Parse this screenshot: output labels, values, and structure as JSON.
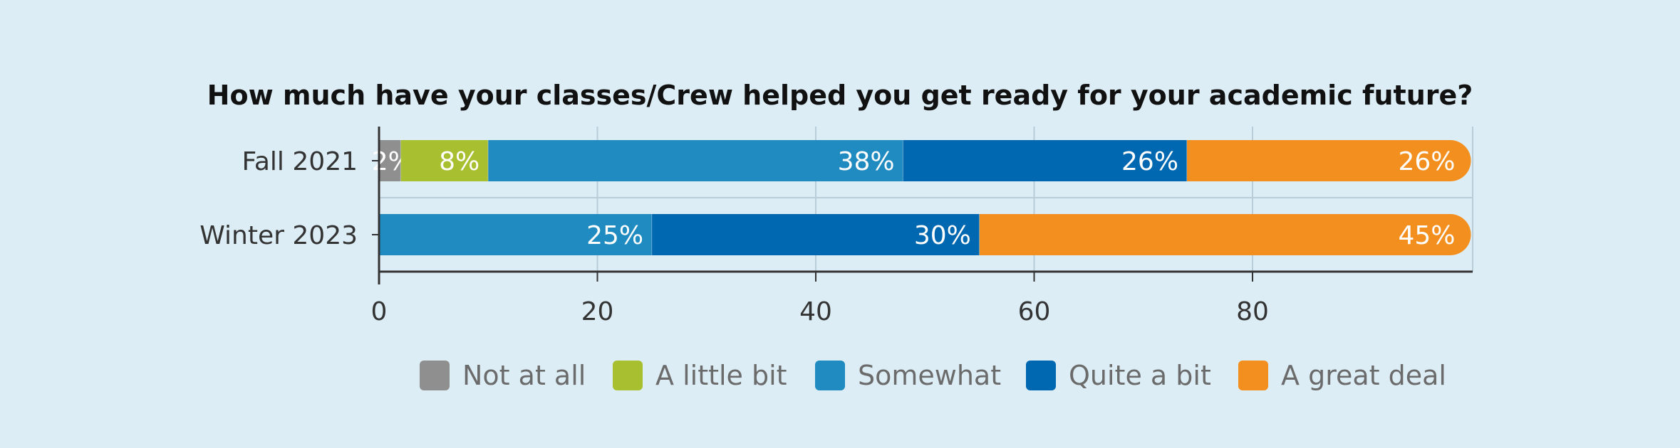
{
  "background_color": "#dcedf5",
  "chart_data": {
    "type": "bar",
    "orientation": "horizontal",
    "stacked": true,
    "title": "How much have your classes/Crew helped you get ready for your academic future?",
    "xlabel": "",
    "ylabel": "",
    "categories": [
      "Fall 2021",
      "Winter 2023"
    ],
    "xlim": [
      0,
      100
    ],
    "x_ticks": [
      0,
      20,
      40,
      60,
      80
    ],
    "grid": true,
    "legend_position": "bottom",
    "series": [
      {
        "name": "Not at all",
        "color": "#8f8f8f",
        "values": [
          2,
          0
        ],
        "labels": [
          "2%",
          ""
        ]
      },
      {
        "name": "A little bit",
        "color": "#a8bf2f",
        "values": [
          8,
          0
        ],
        "labels": [
          "8%",
          ""
        ]
      },
      {
        "name": "Somewhat",
        "color": "#1f8bc0",
        "values": [
          38,
          25
        ],
        "labels": [
          "38%",
          "25%"
        ]
      },
      {
        "name": "Quite a bit",
        "color": "#0067b1",
        "values": [
          26,
          30
        ],
        "labels": [
          "26%",
          "30%"
        ]
      },
      {
        "name": "A great deal",
        "color": "#f28f1e",
        "values": [
          26,
          45
        ],
        "labels": [
          "26%",
          "45%"
        ]
      }
    ]
  }
}
